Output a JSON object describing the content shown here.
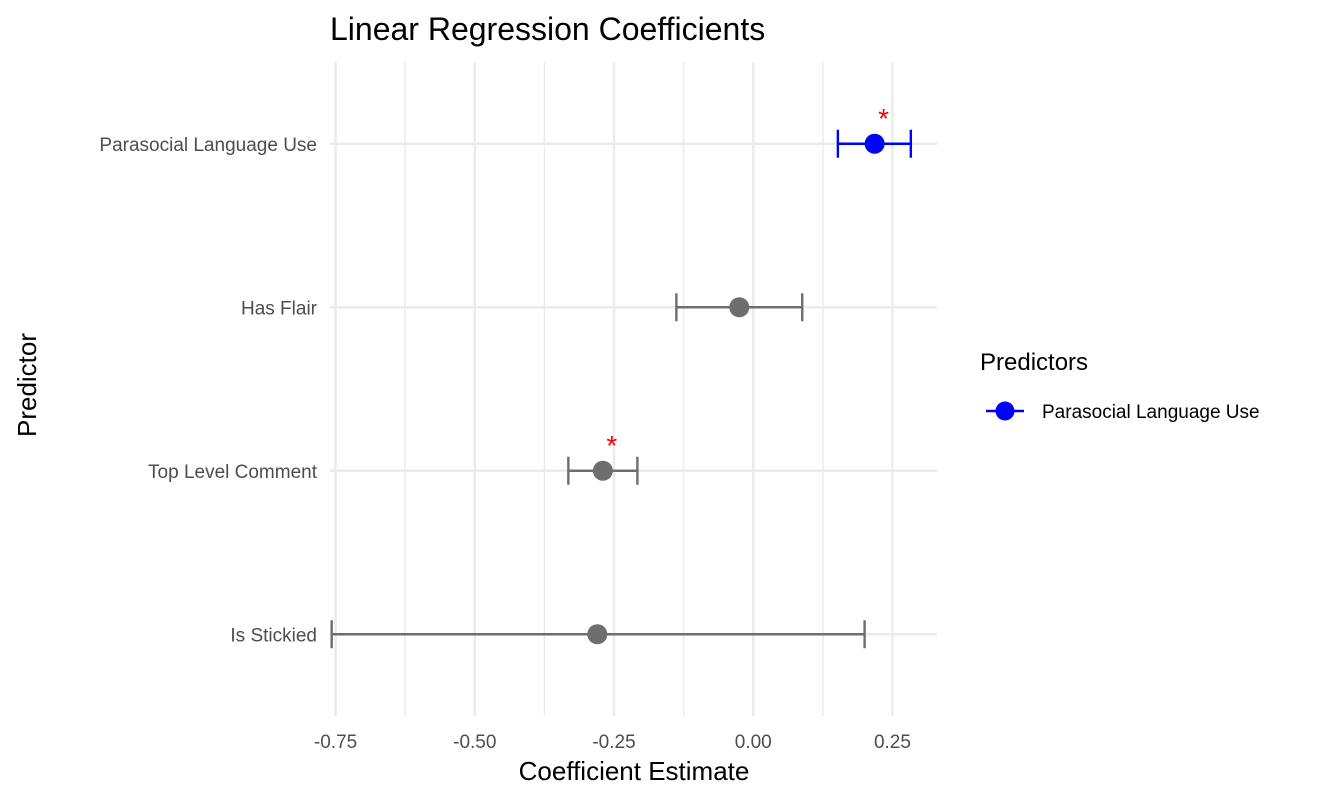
{
  "chart_data": {
    "type": "scatter",
    "subtype": "coefficient-plot-with-error-bars",
    "title": "Linear Regression Coefficients",
    "xlabel": "Coefficient Estimate",
    "ylabel": "Predictor",
    "xlim": [
      -0.76,
      0.33
    ],
    "x_ticks": [
      -0.75,
      -0.5,
      -0.25,
      0.0,
      0.25
    ],
    "x_tick_labels": [
      "-0.75",
      "-0.50",
      "-0.25",
      "0.00",
      "0.25"
    ],
    "x_minor_ticks": [
      -0.625,
      -0.375,
      -0.125,
      0.125
    ],
    "grid": true,
    "legend": {
      "title": "Predictors",
      "position": "right",
      "entries": [
        {
          "label": "Parasocial Language Use",
          "color": "#0000ff"
        }
      ]
    },
    "predictors": [
      {
        "name": "Parasocial Language Use",
        "estimate": 0.218,
        "ci_low": 0.152,
        "ci_high": 0.283,
        "significant": true,
        "color": "#0000ff"
      },
      {
        "name": "Has Flair",
        "estimate": -0.025,
        "ci_low": -0.138,
        "ci_high": 0.088,
        "significant": false,
        "color": "#6e6e6e"
      },
      {
        "name": "Top Level Comment",
        "estimate": -0.27,
        "ci_low": -0.332,
        "ci_high": -0.208,
        "significant": true,
        "color": "#6e6e6e"
      },
      {
        "name": "Is Stickied",
        "estimate": -0.28,
        "ci_low": -0.757,
        "ci_high": 0.2,
        "significant": false,
        "color": "#6e6e6e"
      }
    ],
    "significance_marker": "*",
    "significance_color": "#ff0000"
  }
}
